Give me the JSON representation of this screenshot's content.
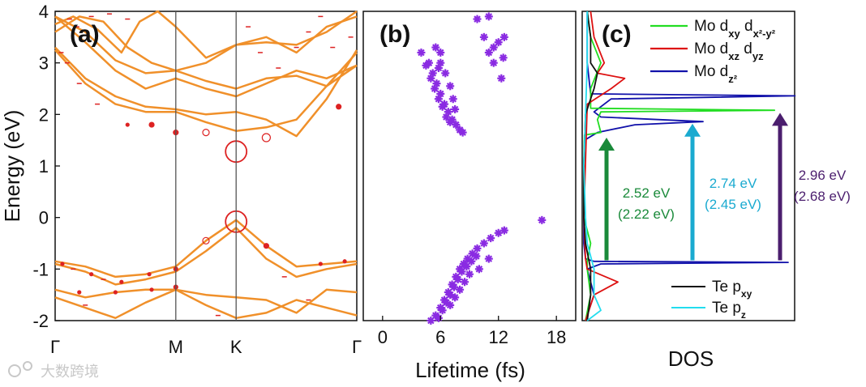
{
  "chart_data": [
    {
      "id": "a",
      "type": "line",
      "panel_label": "(a)",
      "ylabel": "Energy (eV)",
      "ylim": [
        -2,
        4
      ],
      "yticks": [
        "-2",
        "-1",
        "0",
        "1",
        "2",
        "3",
        "4"
      ],
      "xticks": [
        "Γ",
        "M",
        "K",
        "Γ"
      ],
      "kpath": [
        0,
        1,
        1.5,
        2.5
      ],
      "line_color": "#f0902a",
      "marker_color": "#dd2222",
      "bands": [
        {
          "name": "c1",
          "x": [
            0,
            0.25,
            0.5,
            0.75,
            1,
            1.25,
            1.5,
            1.75,
            2,
            2.25,
            2.5
          ],
          "y": [
            3.25,
            2.6,
            2.2,
            2.05,
            2.05,
            1.85,
            1.68,
            1.75,
            1.9,
            2.55,
            3.2
          ]
        },
        {
          "name": "c2",
          "x": [
            0,
            0.25,
            0.5,
            0.75,
            1,
            1.25,
            1.5,
            1.75,
            2,
            2.25,
            2.5
          ],
          "y": [
            3.3,
            2.7,
            2.35,
            2.15,
            2.1,
            2.0,
            2.05,
            1.9,
            1.58,
            2.3,
            3.25
          ]
        },
        {
          "name": "c3",
          "x": [
            0,
            0.25,
            0.5,
            0.75,
            1,
            1.25,
            1.5,
            1.75,
            2,
            2.25,
            2.5
          ],
          "y": [
            3.9,
            3.4,
            2.85,
            2.5,
            2.7,
            2.5,
            2.35,
            2.6,
            2.85,
            2.7,
            2.95
          ]
        },
        {
          "name": "c4",
          "x": [
            0,
            0.25,
            0.5,
            0.75,
            1,
            1.25,
            1.5,
            1.75,
            2,
            2.25,
            2.5
          ],
          "y": [
            3.9,
            3.6,
            3.05,
            2.8,
            2.85,
            2.65,
            2.5,
            2.7,
            2.75,
            2.55,
            2.95
          ]
        },
        {
          "name": "c5",
          "x": [
            0,
            0.2,
            0.4,
            0.6,
            0.8,
            1,
            1.25,
            1.5,
            1.75,
            2,
            2.25,
            2.5
          ],
          "y": [
            3.6,
            3.9,
            3.8,
            3.3,
            3.0,
            2.85,
            3.0,
            3.35,
            3.4,
            3.35,
            3.6,
            4.0
          ]
        },
        {
          "name": "c6",
          "x": [
            0,
            0.15,
            0.35,
            0.55,
            0.7,
            0.85,
            1,
            1.25,
            1.5,
            1.75,
            2,
            2.25,
            2.5
          ],
          "y": [
            3.75,
            3.9,
            3.65,
            3.2,
            3.8,
            4.0,
            3.7,
            3.1,
            3.35,
            3.5,
            3.2,
            3.7,
            3.9
          ]
        },
        {
          "name": "v1",
          "x": [
            0,
            0.25,
            0.5,
            0.75,
            1,
            1.25,
            1.5,
            1.75,
            2,
            2.25,
            2.5
          ],
          "y": [
            -0.85,
            -0.95,
            -1.15,
            -1.1,
            -0.95,
            -0.45,
            -0.05,
            -0.55,
            -0.95,
            -0.9,
            -0.85
          ]
        },
        {
          "name": "v2",
          "x": [
            0,
            0.25,
            0.5,
            0.75,
            1,
            1.25,
            1.5,
            1.75,
            2,
            2.25,
            2.5
          ],
          "y": [
            -0.9,
            -1.05,
            -1.3,
            -1.2,
            -1.05,
            -0.65,
            -0.2,
            -0.8,
            -1.15,
            -1.0,
            -0.9
          ]
        },
        {
          "name": "v3",
          "x": [
            0,
            0.25,
            0.5,
            0.75,
            1,
            1.25,
            1.5,
            1.75,
            2,
            2.25,
            2.5
          ],
          "y": [
            -1.4,
            -1.55,
            -1.45,
            -1.4,
            -1.4,
            -1.5,
            -1.55,
            -1.6,
            -1.85,
            -1.4,
            -1.45
          ]
        },
        {
          "name": "v4",
          "x": [
            0,
            0.25,
            0.5,
            0.75,
            1,
            1.25,
            1.5,
            1.75,
            2,
            2.25,
            2.5
          ],
          "y": [
            -1.55,
            -1.75,
            -1.95,
            -1.65,
            -1.4,
            -1.7,
            -1.95,
            -1.85,
            -1.6,
            -1.75,
            -1.9
          ]
        }
      ],
      "markers": [
        {
          "x": 0.06,
          "y": -0.9,
          "r": 2
        },
        {
          "x": 0.3,
          "y": -1.1,
          "r": 2
        },
        {
          "x": 0.55,
          "y": -1.25,
          "r": 2
        },
        {
          "x": 0.78,
          "y": -1.1,
          "r": 2
        },
        {
          "x": 1.0,
          "y": -1.0,
          "r": 2.5
        },
        {
          "x": 0.2,
          "y": -1.45,
          "r": 2
        },
        {
          "x": 0.5,
          "y": -1.45,
          "r": 2
        },
        {
          "x": 0.8,
          "y": -1.4,
          "r": 2
        },
        {
          "x": 1.0,
          "y": -1.35,
          "r": 2.5
        },
        {
          "x": 1.25,
          "y": -0.45,
          "r": 4
        },
        {
          "x": 1.75,
          "y": -0.55,
          "r": 3
        },
        {
          "x": 2.2,
          "y": -0.9,
          "r": 2
        },
        {
          "x": 2.4,
          "y": -0.85,
          "r": 2
        },
        {
          "x": 0.6,
          "y": 1.8,
          "r": 2
        },
        {
          "x": 0.8,
          "y": 1.8,
          "r": 3
        },
        {
          "x": 1.0,
          "y": 1.65,
          "r": 3
        },
        {
          "x": 1.25,
          "y": 1.65,
          "r": 4
        },
        {
          "x": 1.75,
          "y": 1.55,
          "r": 5
        },
        {
          "x": 2.35,
          "y": 2.15,
          "r": 3
        },
        {
          "x": 1.5,
          "y": 1.28,
          "r": 13
        },
        {
          "x": 1.5,
          "y": -0.08,
          "r": 13
        }
      ]
    },
    {
      "id": "b",
      "type": "scatter",
      "panel_label": "(b)",
      "xlabel": "Lifetime (fs)",
      "xlim": [
        -2,
        20
      ],
      "xticks": [
        "0",
        "6",
        "12",
        "18"
      ],
      "ylim": [
        -2,
        4
      ],
      "marker_color": "#8a2be2",
      "points": [
        [
          4.0,
          3.2
        ],
        [
          4.8,
          3.0
        ],
        [
          5.2,
          2.8
        ],
        [
          5.6,
          2.6
        ],
        [
          6.0,
          2.4
        ],
        [
          6.4,
          2.2
        ],
        [
          6.8,
          2.05
        ],
        [
          7.2,
          1.9
        ],
        [
          7.6,
          1.8
        ],
        [
          8.0,
          1.7
        ],
        [
          8.3,
          1.65
        ],
        [
          4.5,
          2.95
        ],
        [
          5.0,
          2.7
        ],
        [
          5.4,
          2.5
        ],
        [
          5.8,
          2.3
        ],
        [
          6.2,
          2.15
        ],
        [
          6.6,
          1.95
        ],
        [
          7.0,
          1.85
        ],
        [
          5.5,
          3.3
        ],
        [
          6.0,
          3.0
        ],
        [
          6.5,
          2.8
        ],
        [
          7.0,
          2.55
        ],
        [
          7.3,
          2.3
        ],
        [
          7.5,
          2.1
        ],
        [
          6.0,
          3.2
        ],
        [
          5.8,
          2.9
        ],
        [
          9.8,
          3.85
        ],
        [
          11.0,
          3.9
        ],
        [
          10.5,
          3.5
        ],
        [
          11.5,
          3.3
        ],
        [
          12.0,
          3.4
        ],
        [
          12.5,
          3.1
        ],
        [
          11.5,
          3.0
        ],
        [
          12.3,
          2.7
        ],
        [
          11.0,
          3.2
        ],
        [
          12.6,
          3.5
        ],
        [
          5.0,
          -2.0
        ],
        [
          5.5,
          -1.9
        ],
        [
          6.0,
          -1.75
        ],
        [
          6.4,
          -1.6
        ],
        [
          6.8,
          -1.45
        ],
        [
          7.2,
          -1.3
        ],
        [
          7.6,
          -1.15
        ],
        [
          8.0,
          -1.0
        ],
        [
          8.4,
          -0.9
        ],
        [
          8.8,
          -0.8
        ],
        [
          9.3,
          -0.7
        ],
        [
          9.8,
          -0.6
        ],
        [
          10.5,
          -0.5
        ],
        [
          11.2,
          -0.4
        ],
        [
          12.0,
          -0.3
        ],
        [
          12.6,
          -0.25
        ],
        [
          5.8,
          -1.95
        ],
        [
          6.2,
          -1.8
        ],
        [
          6.6,
          -1.65
        ],
        [
          7.0,
          -1.5
        ],
        [
          7.4,
          -1.35
        ],
        [
          7.8,
          -1.2
        ],
        [
          8.2,
          -1.05
        ],
        [
          8.7,
          -0.95
        ],
        [
          9.2,
          -0.85
        ],
        [
          9.7,
          -0.75
        ],
        [
          7.0,
          -1.7
        ],
        [
          7.5,
          -1.55
        ],
        [
          8.0,
          -1.4
        ],
        [
          8.5,
          -1.25
        ],
        [
          9.0,
          -1.1
        ],
        [
          10.0,
          -1.0
        ],
        [
          11.0,
          -0.8
        ],
        [
          16.5,
          -0.05
        ]
      ]
    },
    {
      "id": "c",
      "type": "line",
      "panel_label": "(c)",
      "xlabel": "DOS",
      "ylim": [
        -2,
        4
      ],
      "legend_top": [
        {
          "label": "Mo d",
          "sub": "xy",
          "mid": " d",
          "sub2": "x²-y²",
          "color": "#22dd22"
        },
        {
          "label": "Mo d",
          "sub": "xz",
          "mid": " d",
          "sub2": "yz",
          "color": "#dd1111"
        },
        {
          "label": "Mo d",
          "sub": "z²",
          "mid": "",
          "sub2": "",
          "color": "#1111aa"
        }
      ],
      "legend_bottom": [
        {
          "label": "Te p",
          "sub": "xy",
          "color": "#111111"
        },
        {
          "label": "Te p",
          "sub": "z",
          "color": "#22ddee"
        }
      ],
      "series": [
        {
          "name": "Mo dz2",
          "color": "#1111aa",
          "y": [
            -2.0,
            -1.5,
            -1.0,
            -0.9,
            -0.87,
            -0.85,
            -0.8,
            -0.5,
            0.0,
            1.0,
            1.5,
            1.65,
            1.8,
            1.86,
            1.95,
            2.05,
            2.3,
            2.36,
            2.4,
            3.0,
            4.0
          ],
          "dos": [
            0.05,
            0.3,
            0.1,
            0.5,
            6.0,
            0.3,
            0.05,
            0.0,
            0.0,
            0.0,
            0.02,
            0.4,
            1.5,
            3.5,
            0.5,
            0.3,
            0.8,
            6.2,
            0.2,
            0.1,
            0.1
          ]
        },
        {
          "name": "Mo dxy",
          "color": "#22dd22",
          "y": [
            -2.0,
            -1.5,
            -1.0,
            -0.85,
            -0.5,
            0.0,
            1.0,
            1.6,
            1.65,
            1.9,
            2.05,
            2.08,
            2.12,
            2.5,
            3.0,
            3.5,
            4.0
          ],
          "dos": [
            0.05,
            0.2,
            0.1,
            0.1,
            0.2,
            0.0,
            0.0,
            0.02,
            0.5,
            0.4,
            0.5,
            5.6,
            0.2,
            0.2,
            0.5,
            0.2,
            0.1
          ]
        },
        {
          "name": "Mo dxz",
          "color": "#dd1111",
          "y": [
            -2.0,
            -1.5,
            -1.25,
            -1.0,
            -0.8,
            0.0,
            2.2,
            2.5,
            2.7,
            2.8,
            3.0,
            3.5,
            4.0
          ],
          "dos": [
            0.05,
            0.3,
            1.0,
            0.1,
            0.05,
            0.0,
            0.1,
            0.8,
            1.2,
            0.4,
            0.6,
            0.3,
            0.2
          ]
        },
        {
          "name": "Te pxy",
          "color": "#111111",
          "y": [
            -2.0,
            -1.5,
            -1.0,
            -0.5,
            0.0,
            1.0,
            2.0,
            2.5,
            2.8,
            3.0,
            3.5,
            4.0
          ],
          "dos": [
            0.1,
            0.2,
            0.2,
            0.05,
            0.0,
            0.0,
            0.05,
            0.3,
            0.4,
            0.2,
            0.2,
            0.1
          ]
        },
        {
          "name": "Te pz",
          "color": "#22ddee",
          "y": [
            -2.0,
            -1.8,
            -1.5,
            -1.0,
            -0.5,
            0.0,
            1.0,
            2.0,
            3.0,
            4.0
          ],
          "dos": [
            0.1,
            0.5,
            0.3,
            0.3,
            0.1,
            0.05,
            0.0,
            0.05,
            0.1,
            0.1
          ]
        }
      ],
      "arrows": [
        {
          "from": -0.83,
          "to": 1.55,
          "color": "#1a8a3a",
          "label1": "2.52 eV",
          "label2": "(2.22 eV)"
        },
        {
          "from": -0.83,
          "to": 1.82,
          "color": "#1aaad0",
          "label1": "2.74 eV",
          "label2": "(2.45 eV)"
        },
        {
          "from": -0.83,
          "to": 2.03,
          "color": "#4b1e6e",
          "label1": "2.96 eV",
          "label2": "(2.68 eV)"
        }
      ]
    }
  ],
  "watermark": "大数跨境"
}
